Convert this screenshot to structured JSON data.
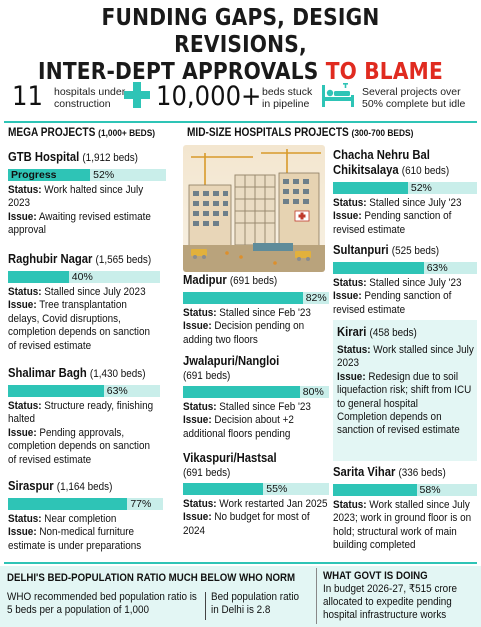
{
  "headline": {
    "line1": "FUNDING GAPS, DESIGN REVISIONS,",
    "line2_black": "INTER-DEPT APPROVALS ",
    "line2_red": "TO BLAME"
  },
  "stats": {
    "hospitals_num": "11",
    "hospitals_txt1": "hospitals under",
    "hospitals_txt2": "construction",
    "beds_num": "10,000+",
    "beds_txt1": "beds stuck",
    "beds_txt2": "in pipeline",
    "idle_txt1": "Several projects over",
    "idle_txt2": "50% complete but idle"
  },
  "mega": {
    "heading": "MEGA PROJECTS ",
    "heading_sub": "(1,000+ BEDS)",
    "projects": [
      {
        "name": "GTB Hospital",
        "beds": "(1,912 beds)",
        "progress_label": "Progress",
        "pct_label": "52%",
        "pct": 52,
        "status_label": "Status:",
        "status": "Work halted since July 2023",
        "issue_label": "Issue:",
        "issue": "Awaiting revised estimate approval"
      },
      {
        "name": "Raghubir Nagar",
        "beds": "(1,565 beds)",
        "pct_label": "40%",
        "pct": 40,
        "status_label": "Status:",
        "status": "Stalled since July 2023",
        "issue_label": "Issue:",
        "issue": "Tree transplantation delays, Covid disruptions, completion depends on sanction of revised estimate"
      },
      {
        "name": "Shalimar Bagh",
        "beds": "(1,430 beds)",
        "pct_label": "63%",
        "pct": 63,
        "status_label": "Status:",
        "status": "Structure ready, finishing halted",
        "issue_label": "Issue:",
        "issue": "Pending approvals, completion depends on sanction of revised estimate"
      },
      {
        "name": "Siraspur",
        "beds": "(1,164 beds)",
        "pct_label": "77%",
        "pct": 77,
        "status_label": "Status:",
        "status": "Near completion",
        "issue_label": "Issue:",
        "issue": "Non-medical furniture estimate is under preparations"
      }
    ]
  },
  "mid": {
    "heading": "MID-SIZE HOSPITALS PROJECTS ",
    "heading_sub": "(300-700 BEDS)",
    "projects": [
      {
        "name": "Madipur",
        "beds": "(691 beds)",
        "pct_label": "82%",
        "pct": 82,
        "status_label": "Status:",
        "status": "Stalled since Feb '23",
        "issue_label": "Issue:",
        "issue": "Decision pending on adding two floors"
      },
      {
        "name": "Jwalapuri/Nangloi",
        "beds": "(691 beds)",
        "pct_label": "80%",
        "pct": 80,
        "status_label": "Status:",
        "status": "Stalled since Feb '23",
        "issue_label": "Issue:",
        "issue": "Decision about +2 additional floors pending"
      },
      {
        "name": "Vikaspuri/Hastsal",
        "beds": "(691 beds)",
        "pct_label": "55%",
        "pct": 55,
        "status_label": "Status:",
        "status": "Work restarted Jan 2025",
        "issue_label": "Issue:",
        "issue": "No budget for most of 2024"
      },
      {
        "name": "Chacha Nehru Bal Chikitsalaya",
        "name1": "Chacha Nehru Bal",
        "name2": "Chikitsalaya",
        "beds": "(610 beds)",
        "pct_label": "52%",
        "pct": 52,
        "status_label": "Status:",
        "status": "Stalled since July '23",
        "issue_label": "Issue:",
        "issue": "Pending sanction of revised estimate"
      },
      {
        "name": "Sultanpuri",
        "beds": "(525 beds)",
        "pct_label": "63%",
        "pct": 63,
        "status_label": "Status:",
        "status": "Stalled since July '23",
        "issue_label": "Issue:",
        "issue": "Pending sanction of revised estimate"
      },
      {
        "name": "Kirari",
        "beds": "(458 beds)",
        "status_label": "Status:",
        "status": "Work stalled since July 2023",
        "issue_label": "Issue:",
        "issue": "Redesign due to soil liquefaction risk; shift from ICU to general hospital",
        "extra": "Completion depends on sanction of revised estimate"
      },
      {
        "name": "Sarita Vihar",
        "beds": "(336 beds)",
        "pct_label": "58%",
        "pct": 58,
        "status_label": "Status:",
        "status": "Work stalled since July 2023; work in ground floor is on hold; structural work of main building completed"
      }
    ]
  },
  "bottom": {
    "left_heading": "DELHI'S BED-POPULATION RATIO MUCH BELOW WHO NORM",
    "left_txt": "WHO recommended bed population ratio is 5 beds per a population of 1,000",
    "mid_txt": "Bed population ratio in Delhi is 2.8",
    "right_heading": "WHAT GOVT IS DOING",
    "right_txt": "In budget 2026-27, ₹515 crore allocated to expedite pending hospital infrastructure works"
  },
  "colors": {
    "accent": "#2ec4b6",
    "accent_light": "#c9eeea",
    "panel": "#e3f6f4",
    "red": "#e02b20"
  },
  "icons": [
    "plus-icon",
    "hospital-bed-icon",
    "construction-illustration"
  ]
}
